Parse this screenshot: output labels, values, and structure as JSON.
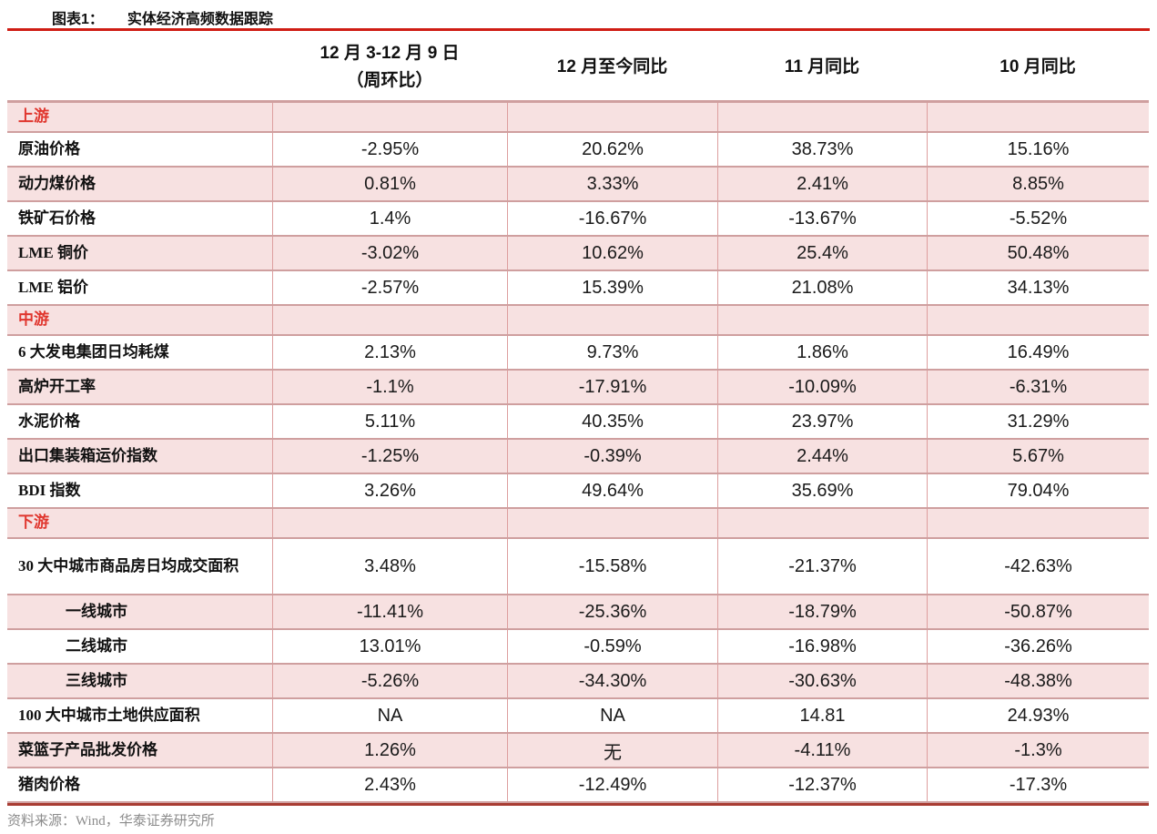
{
  "figure": {
    "label": "图表1：",
    "title": "实体经济高频数据跟踪",
    "source": "资料来源：Wind，华泰证券研究所"
  },
  "table": {
    "headers": {
      "col2_line1": "12 月 3-12 月 9 日",
      "col2_line2": "（周环比）",
      "col3": "12 月至今同比",
      "col4": "11 月同比",
      "col5": "10 月同比"
    },
    "rows": [
      {
        "type": "section",
        "label": "上游",
        "values": [
          "",
          "",
          "",
          ""
        ]
      },
      {
        "type": "data",
        "label": "原油价格",
        "values": [
          "-2.95%",
          "20.62%",
          "38.73%",
          "15.16%"
        ]
      },
      {
        "type": "data",
        "label": "动力煤价格",
        "values": [
          "0.81%",
          "3.33%",
          "2.41%",
          "8.85%"
        ]
      },
      {
        "type": "data",
        "label": "铁矿石价格",
        "values": [
          "1.4%",
          "-16.67%",
          "-13.67%",
          "-5.52%"
        ]
      },
      {
        "type": "data",
        "label": "LME 铜价",
        "values": [
          "-3.02%",
          "10.62%",
          "25.4%",
          "50.48%"
        ]
      },
      {
        "type": "data",
        "label": "LME 铝价",
        "values": [
          "-2.57%",
          "15.39%",
          "21.08%",
          "34.13%"
        ]
      },
      {
        "type": "section",
        "label": "中游",
        "values": [
          "",
          "",
          "",
          ""
        ]
      },
      {
        "type": "data",
        "label": "6 大发电集团日均耗煤",
        "values": [
          "2.13%",
          "9.73%",
          "1.86%",
          "16.49%"
        ]
      },
      {
        "type": "data",
        "label": "高炉开工率",
        "values": [
          "-1.1%",
          "-17.91%",
          "-10.09%",
          "-6.31%"
        ]
      },
      {
        "type": "data",
        "label": "水泥价格",
        "values": [
          "5.11%",
          "40.35%",
          "23.97%",
          "31.29%"
        ]
      },
      {
        "type": "data",
        "label": "出口集装箱运价指数",
        "values": [
          "-1.25%",
          "-0.39%",
          "2.44%",
          "5.67%"
        ]
      },
      {
        "type": "data",
        "label": "BDI 指数",
        "values": [
          "3.26%",
          "49.64%",
          "35.69%",
          "79.04%"
        ]
      },
      {
        "type": "section",
        "label": "下游",
        "values": [
          "",
          "",
          "",
          ""
        ]
      },
      {
        "type": "data",
        "tall": true,
        "label": "30 大中城市商品房日均成交面积",
        "values": [
          "3.48%",
          "-15.58%",
          "-21.37%",
          "-42.63%"
        ]
      },
      {
        "type": "data",
        "indent": true,
        "label": "一线城市",
        "values": [
          "-11.41%",
          "-25.36%",
          "-18.79%",
          "-50.87%"
        ]
      },
      {
        "type": "data",
        "indent": true,
        "label": "二线城市",
        "values": [
          "13.01%",
          "-0.59%",
          "-16.98%",
          "-36.26%"
        ]
      },
      {
        "type": "data",
        "indent": true,
        "label": "三线城市",
        "values": [
          "-5.26%",
          "-34.30%",
          "-30.63%",
          "-48.38%"
        ]
      },
      {
        "type": "data",
        "label": "100 大中城市土地供应面积",
        "values": [
          "NA",
          "NA",
          "14.81",
          "24.93%"
        ]
      },
      {
        "type": "data",
        "label": "菜篮子产品批发价格",
        "values": [
          "1.26%",
          "无",
          "-4.11%",
          "-1.3%"
        ]
      },
      {
        "type": "data",
        "label": "猪肉价格",
        "values": [
          "2.43%",
          "-12.49%",
          "-12.37%",
          "-17.3%"
        ]
      }
    ]
  },
  "colors": {
    "accent_red": "#cf1d14",
    "section_text": "#e0362e",
    "row_pink": "#f7e1e1",
    "grid_line": "#cf9f9f",
    "bottom_border": "#a83c32"
  }
}
